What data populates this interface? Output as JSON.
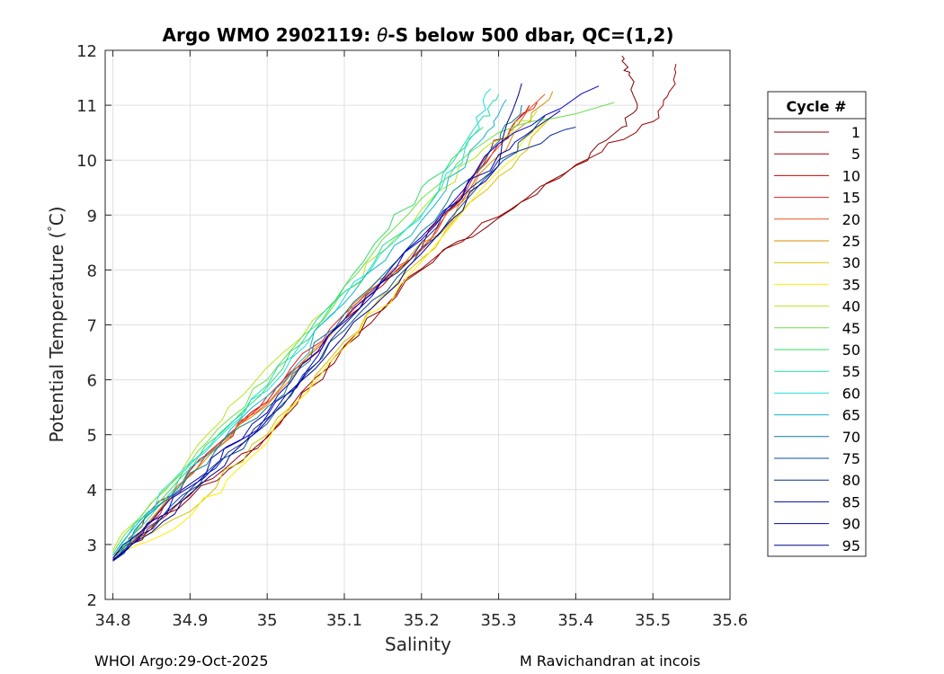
{
  "chart_data": {
    "type": "line",
    "title_prefix": "Argo WMO 2902119: ",
    "title_theta": "θ",
    "title_suffix": "-S below 500 dbar,  QC=(1,2)",
    "xlabel": "Salinity",
    "ylabel_prefix": "Potential Temperature (",
    "ylabel_degree": "°",
    "ylabel_suffix": "C)",
    "xlim": [
      34.79,
      35.6
    ],
    "ylim": [
      2,
      12
    ],
    "xticks": [
      34.8,
      34.9,
      35,
      35.1,
      35.2,
      35.3,
      35.4,
      35.5,
      35.6
    ],
    "xtick_labels": [
      "34.8",
      "34.9",
      "35",
      "35.1",
      "35.2",
      "35.3",
      "35.4",
      "35.5",
      "35.6"
    ],
    "yticks": [
      2,
      3,
      4,
      5,
      6,
      7,
      8,
      9,
      10,
      11,
      12
    ],
    "ytick_labels": [
      "2",
      "3",
      "4",
      "5",
      "6",
      "7",
      "8",
      "9",
      "10",
      "11",
      "12"
    ],
    "grid": true,
    "legend": {
      "title": "Cycle #",
      "placement": "outside-right",
      "entries": [
        {
          "label": "1",
          "color": "#800000"
        },
        {
          "label": "5",
          "color": "#a00000"
        },
        {
          "label": "10",
          "color": "#cc0000"
        },
        {
          "label": "15",
          "color": "#e31a1c"
        },
        {
          "label": "20",
          "color": "#e8541c"
        },
        {
          "label": "25",
          "color": "#d98c00"
        },
        {
          "label": "30",
          "color": "#d6c200"
        },
        {
          "label": "35",
          "color": "#ffee00"
        },
        {
          "label": "40",
          "color": "#b5e61d"
        },
        {
          "label": "45",
          "color": "#6be04a"
        },
        {
          "label": "50",
          "color": "#33dd66"
        },
        {
          "label": "55",
          "color": "#22ddaa"
        },
        {
          "label": "60",
          "color": "#1fe0e0"
        },
        {
          "label": "65",
          "color": "#12b5c8"
        },
        {
          "label": "70",
          "color": "#0b7f92"
        },
        {
          "label": "75",
          "color": "#0b4f9a"
        },
        {
          "label": "80",
          "color": "#0a2a8a"
        },
        {
          "label": "85",
          "color": "#0000aa"
        },
        {
          "label": "90",
          "color": "#0000cc"
        },
        {
          "label": "95",
          "color": "#00008b"
        }
      ]
    },
    "series": [
      {
        "name": "1",
        "color": "#800000",
        "values": [
          [
            34.8,
            2.7
          ],
          [
            34.9,
            3.85
          ],
          [
            35.0,
            4.95
          ],
          [
            35.1,
            6.6
          ],
          [
            35.2,
            8.0
          ],
          [
            35.3,
            8.95
          ],
          [
            35.4,
            9.9
          ],
          [
            35.46,
            10.6
          ],
          [
            35.48,
            11.0
          ],
          [
            35.47,
            11.6
          ],
          [
            35.46,
            11.9
          ]
        ]
      },
      {
        "name": "5",
        "color": "#a00000",
        "values": [
          [
            34.8,
            2.72
          ],
          [
            34.9,
            3.9
          ],
          [
            35.0,
            4.97
          ],
          [
            35.1,
            6.62
          ],
          [
            35.2,
            8.02
          ],
          [
            35.3,
            8.97
          ],
          [
            35.42,
            10.05
          ],
          [
            35.5,
            10.7
          ],
          [
            35.52,
            11.2
          ],
          [
            35.53,
            11.75
          ]
        ]
      },
      {
        "name": "10",
        "color": "#cc0000",
        "values": [
          [
            34.82,
            3.1
          ],
          [
            34.9,
            4.35
          ],
          [
            35.0,
            5.6
          ],
          [
            35.1,
            7.1
          ],
          [
            35.2,
            8.4
          ],
          [
            35.29,
            10.2
          ],
          [
            35.34,
            11.0
          ]
        ]
      },
      {
        "name": "15",
        "color": "#e31a1c",
        "values": [
          [
            34.83,
            3.05
          ],
          [
            34.91,
            4.4
          ],
          [
            35.0,
            5.7
          ],
          [
            35.1,
            7.2
          ],
          [
            35.21,
            8.5
          ],
          [
            35.3,
            10.3
          ],
          [
            35.35,
            11.05
          ]
        ]
      },
      {
        "name": "20",
        "color": "#e8541c",
        "values": [
          [
            34.82,
            3.0
          ],
          [
            34.92,
            4.6
          ],
          [
            35.02,
            5.9
          ],
          [
            35.12,
            7.4
          ],
          [
            35.22,
            8.7
          ],
          [
            35.31,
            10.4
          ],
          [
            35.36,
            11.2
          ]
        ]
      },
      {
        "name": "25",
        "color": "#d98c00",
        "values": [
          [
            34.83,
            3.1
          ],
          [
            34.93,
            4.7
          ],
          [
            35.03,
            6.0
          ],
          [
            35.13,
            7.6
          ],
          [
            35.24,
            8.9
          ],
          [
            35.32,
            10.5
          ],
          [
            35.37,
            11.25
          ]
        ]
      },
      {
        "name": "30",
        "color": "#d6c200",
        "values": [
          [
            34.8,
            2.8
          ],
          [
            34.9,
            3.6
          ],
          [
            35.0,
            5.0
          ],
          [
            35.1,
            6.7
          ],
          [
            35.2,
            8.2
          ],
          [
            35.3,
            9.7
          ],
          [
            35.37,
            10.8
          ]
        ]
      },
      {
        "name": "35",
        "color": "#ffee00",
        "values": [
          [
            34.8,
            2.75
          ],
          [
            34.89,
            3.4
          ],
          [
            34.98,
            4.6
          ],
          [
            35.08,
            6.3
          ],
          [
            35.19,
            8.0
          ],
          [
            35.3,
            9.8
          ],
          [
            35.36,
            10.7
          ]
        ]
      },
      {
        "name": "40",
        "color": "#b5e61d",
        "values": [
          [
            34.8,
            2.9
          ],
          [
            34.9,
            4.6
          ],
          [
            34.98,
            5.9
          ],
          [
            35.1,
            7.6
          ],
          [
            35.2,
            9.1
          ],
          [
            35.28,
            10.2
          ],
          [
            35.35,
            10.9
          ]
        ]
      },
      {
        "name": "45",
        "color": "#6be04a",
        "values": [
          [
            34.8,
            2.85
          ],
          [
            34.91,
            4.7
          ],
          [
            35.0,
            6.0
          ],
          [
            35.1,
            7.7
          ],
          [
            35.2,
            9.3
          ],
          [
            35.3,
            10.5
          ],
          [
            35.45,
            11.05
          ]
        ]
      },
      {
        "name": "50",
        "color": "#33dd66",
        "values": [
          [
            34.81,
            2.9
          ],
          [
            34.92,
            4.8
          ],
          [
            35.02,
            6.2
          ],
          [
            35.11,
            7.9
          ],
          [
            35.2,
            9.5
          ],
          [
            35.28,
            10.6
          ]
        ]
      },
      {
        "name": "55",
        "color": "#22ddaa",
        "values": [
          [
            34.81,
            2.85
          ],
          [
            34.91,
            4.6
          ],
          [
            35.0,
            5.9
          ],
          [
            35.1,
            7.6
          ],
          [
            35.21,
            9.2
          ],
          [
            35.28,
            10.8
          ],
          [
            35.3,
            11.2
          ]
        ]
      },
      {
        "name": "60",
        "color": "#1fe0e0",
        "values": [
          [
            34.8,
            2.8
          ],
          [
            34.9,
            4.5
          ],
          [
            35.0,
            5.8
          ],
          [
            35.1,
            7.5
          ],
          [
            35.2,
            9.0
          ],
          [
            35.27,
            10.5
          ],
          [
            35.29,
            11.3
          ]
        ]
      },
      {
        "name": "65",
        "color": "#12b5c8",
        "values": [
          [
            34.8,
            2.8
          ],
          [
            34.9,
            4.4
          ],
          [
            35.0,
            5.7
          ],
          [
            35.1,
            7.4
          ],
          [
            35.2,
            8.9
          ],
          [
            35.28,
            10.4
          ],
          [
            35.31,
            11.1
          ]
        ]
      },
      {
        "name": "70",
        "color": "#0b7f92",
        "values": [
          [
            34.8,
            2.75
          ],
          [
            34.9,
            4.3
          ],
          [
            35.0,
            5.5
          ],
          [
            35.1,
            7.2
          ],
          [
            35.2,
            8.7
          ],
          [
            35.29,
            10.2
          ],
          [
            35.33,
            11.0
          ]
        ]
      },
      {
        "name": "75",
        "color": "#0b4f9a",
        "values": [
          [
            34.8,
            2.7
          ],
          [
            34.89,
            3.9
          ],
          [
            35.0,
            5.2
          ],
          [
            35.1,
            6.9
          ],
          [
            35.2,
            8.4
          ],
          [
            35.3,
            9.9
          ],
          [
            35.36,
            10.8
          ]
        ]
      },
      {
        "name": "80",
        "color": "#0a2a8a",
        "values": [
          [
            34.8,
            2.7
          ],
          [
            34.9,
            4.0
          ],
          [
            35.0,
            5.3
          ],
          [
            35.1,
            7.0
          ],
          [
            35.2,
            8.5
          ],
          [
            35.3,
            10.0
          ],
          [
            35.4,
            10.6
          ]
        ]
      },
      {
        "name": "85",
        "color": "#0000aa",
        "values": [
          [
            34.8,
            2.75
          ],
          [
            34.9,
            4.1
          ],
          [
            35.0,
            5.4
          ],
          [
            35.1,
            7.1
          ],
          [
            35.2,
            8.6
          ],
          [
            35.3,
            10.1
          ],
          [
            35.38,
            10.9
          ]
        ]
      },
      {
        "name": "90",
        "color": "#0000cc",
        "values": [
          [
            34.8,
            2.72
          ],
          [
            34.9,
            4.05
          ],
          [
            35.0,
            5.35
          ],
          [
            35.1,
            7.05
          ],
          [
            35.2,
            8.55
          ],
          [
            35.3,
            10.3
          ],
          [
            35.43,
            11.35
          ]
        ]
      },
      {
        "name": "95",
        "color": "#00008b",
        "values": [
          [
            34.8,
            2.7
          ],
          [
            34.89,
            3.8
          ],
          [
            34.99,
            5.1
          ],
          [
            35.1,
            6.8
          ],
          [
            35.2,
            8.3
          ],
          [
            35.3,
            9.9
          ],
          [
            35.33,
            11.4
          ]
        ]
      }
    ]
  },
  "footer": {
    "left": "WHOI Argo:29-Oct-2025",
    "right": "M Ravichandran at incois"
  }
}
